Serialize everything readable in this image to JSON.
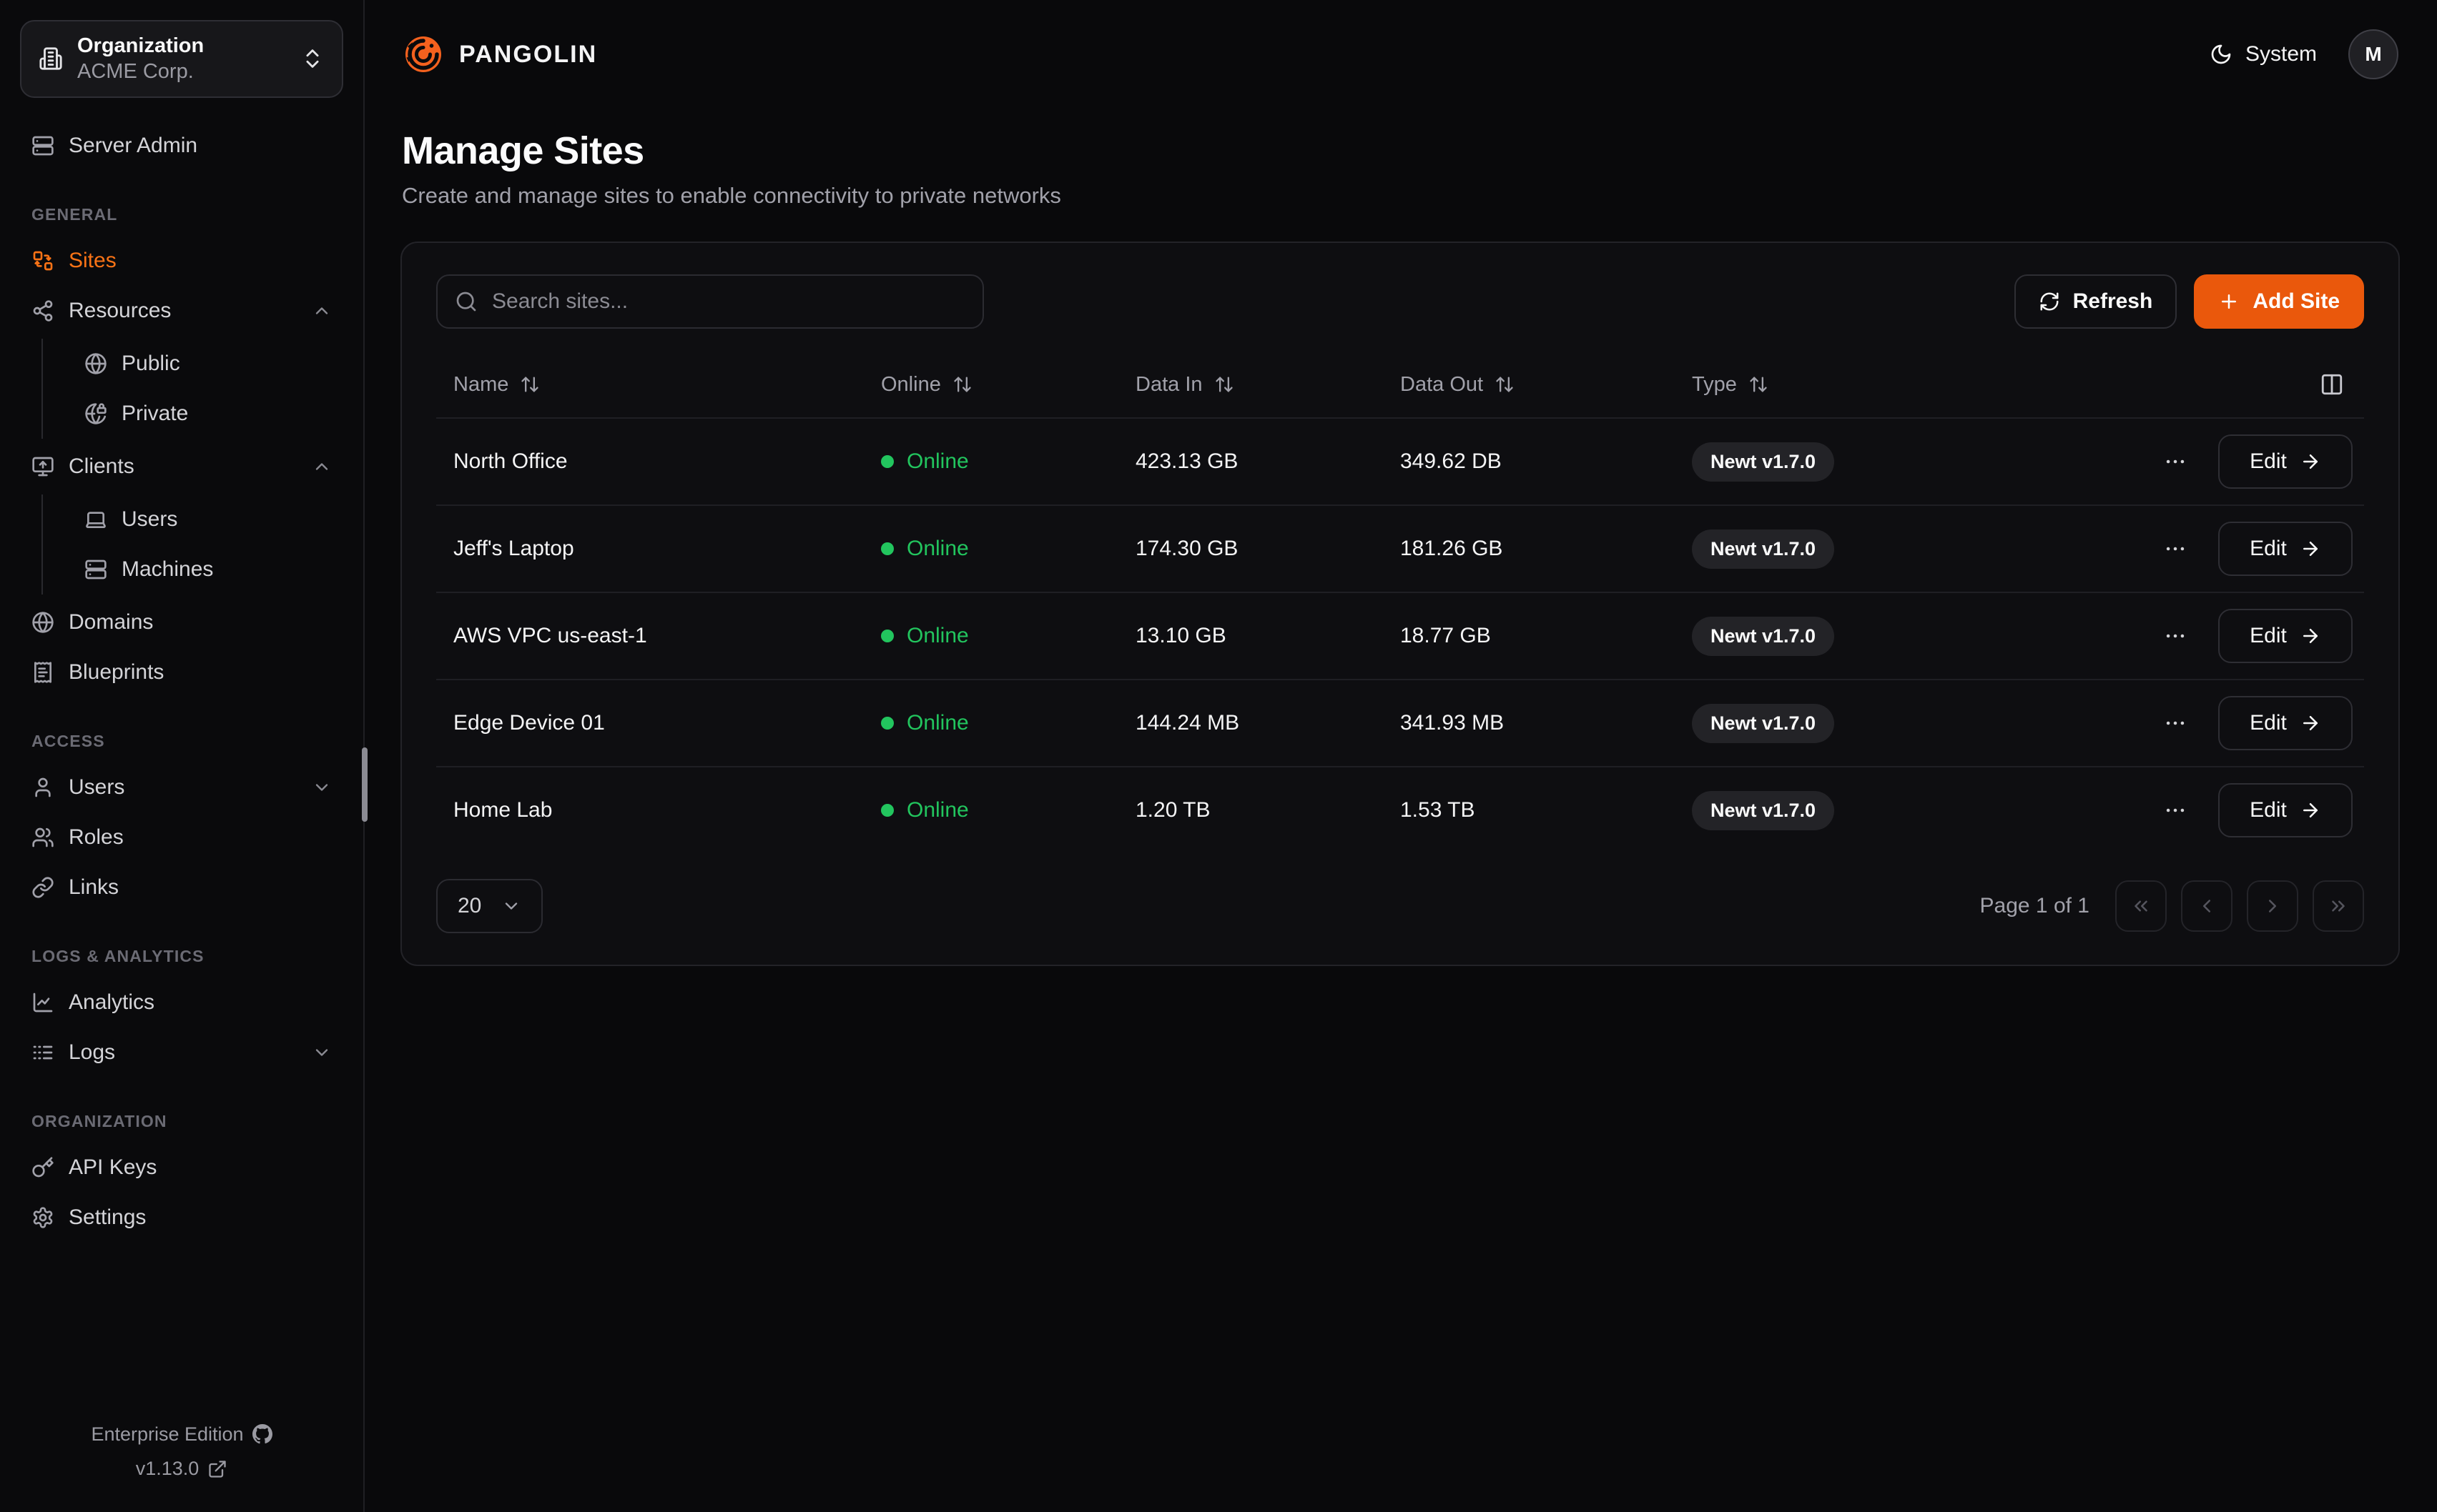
{
  "colors": {
    "accent": "#ea580c",
    "online_green": "#22c55e",
    "active_nav_orange": "#f97316",
    "badge_bg": "#232327"
  },
  "org_selector": {
    "label": "Organization",
    "value": "ACME Corp."
  },
  "sidebar": {
    "standalone_items": [
      {
        "label": "Server Admin",
        "icon": "server"
      }
    ],
    "sections": [
      {
        "label": "GENERAL",
        "items": [
          {
            "label": "Sites",
            "icon": "sites",
            "active": true
          },
          {
            "label": "Resources",
            "icon": "share",
            "chevron": "up",
            "children": [
              {
                "label": "Public",
                "icon": "globe"
              },
              {
                "label": "Private",
                "icon": "globe-lock"
              }
            ]
          },
          {
            "label": "Clients",
            "icon": "monitor-up",
            "chevron": "up",
            "children": [
              {
                "label": "Users",
                "icon": "laptop"
              },
              {
                "label": "Machines",
                "icon": "server"
              }
            ]
          },
          {
            "label": "Domains",
            "icon": "globe"
          },
          {
            "label": "Blueprints",
            "icon": "receipt"
          }
        ]
      },
      {
        "label": "ACCESS",
        "items": [
          {
            "label": "Users",
            "icon": "user",
            "chevron": "down"
          },
          {
            "label": "Roles",
            "icon": "users"
          },
          {
            "label": "Links",
            "icon": "link"
          }
        ]
      },
      {
        "label": "LOGS & ANALYTICS",
        "items": [
          {
            "label": "Analytics",
            "icon": "chart"
          },
          {
            "label": "Logs",
            "icon": "logs",
            "chevron": "down"
          }
        ]
      },
      {
        "label": "ORGANIZATION",
        "items": [
          {
            "label": "API Keys",
            "icon": "key"
          },
          {
            "label": "Settings",
            "icon": "gear"
          }
        ]
      }
    ],
    "footer": {
      "edition": "Enterprise Edition",
      "version": "v1.13.0"
    }
  },
  "topbar": {
    "brand": "PANGOLIN",
    "theme_toggle_label": "System",
    "avatar_initial": "M"
  },
  "page_header": {
    "title": "Manage Sites",
    "subtitle": "Create and manage sites to enable connectivity to private networks"
  },
  "toolbar": {
    "search_placeholder": "Search sites...",
    "refresh_label": "Refresh",
    "add_site_label": "Add Site"
  },
  "table": {
    "columns": [
      {
        "label": "Name",
        "sortable": true
      },
      {
        "label": "Online",
        "sortable": true
      },
      {
        "label": "Data In",
        "sortable": true
      },
      {
        "label": "Data Out",
        "sortable": true
      },
      {
        "label": "Type",
        "sortable": true
      }
    ],
    "edit_label": "Edit",
    "rows": [
      {
        "name": "North Office",
        "status": "Online",
        "data_in": "423.13 GB",
        "data_out": "349.62 DB",
        "type": "Newt v1.7.0"
      },
      {
        "name": "Jeff's Laptop",
        "status": "Online",
        "data_in": "174.30 GB",
        "data_out": "181.26 GB",
        "type": "Newt v1.7.0"
      },
      {
        "name": "AWS VPC us-east-1",
        "status": "Online",
        "data_in": "13.10 GB",
        "data_out": "18.77 GB",
        "type": "Newt v1.7.0"
      },
      {
        "name": "Edge Device 01",
        "status": "Online",
        "data_in": "144.24 MB",
        "data_out": "341.93 MB",
        "type": "Newt v1.7.0"
      },
      {
        "name": "Home Lab",
        "status": "Online",
        "data_in": "1.20 TB",
        "data_out": "1.53 TB",
        "type": "Newt v1.7.0"
      }
    ]
  },
  "pagination": {
    "page_size": "20",
    "page_info": "Page 1 of 1"
  }
}
